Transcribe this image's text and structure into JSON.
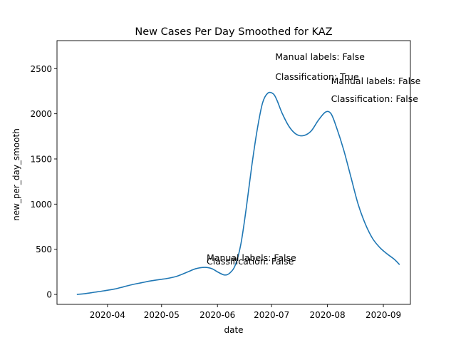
{
  "chart_data": {
    "type": "line",
    "title": "New Cases Per Day Smoothed for KAZ",
    "xlabel": "date",
    "ylabel": "new_per_day_smooth",
    "x_range": [
      "2020-03-04",
      "2020-09-16"
    ],
    "ylim": [
      -110,
      2810
    ],
    "x_ticks": [
      "2020-04",
      "2020-05",
      "2020-06",
      "2020-07",
      "2020-08",
      "2020-09"
    ],
    "y_ticks": [
      0,
      500,
      1000,
      1500,
      2000,
      2500
    ],
    "grid": false,
    "series_color": "#1f77b4",
    "series": [
      {
        "x": [
          "2020-03-15",
          "2020-03-20",
          "2020-03-25",
          "2020-03-30",
          "2020-04-05",
          "2020-04-10",
          "2020-04-15",
          "2020-04-20",
          "2020-04-25",
          "2020-04-30",
          "2020-05-05",
          "2020-05-10",
          "2020-05-15",
          "2020-05-20",
          "2020-05-25",
          "2020-05-29",
          "2020-06-01",
          "2020-06-05",
          "2020-06-08",
          "2020-06-11",
          "2020-06-14",
          "2020-06-17",
          "2020-06-20",
          "2020-06-23",
          "2020-06-26",
          "2020-06-29",
          "2020-07-02",
          "2020-07-04",
          "2020-07-07",
          "2020-07-11",
          "2020-07-15",
          "2020-07-19",
          "2020-07-23",
          "2020-07-27",
          "2020-07-31",
          "2020-08-03",
          "2020-08-06",
          "2020-08-10",
          "2020-08-14",
          "2020-08-18",
          "2020-08-22",
          "2020-08-26",
          "2020-08-30",
          "2020-09-03",
          "2020-09-07",
          "2020-09-10"
        ],
        "y": [
          0,
          10,
          25,
          40,
          60,
          85,
          110,
          130,
          150,
          165,
          180,
          205,
          245,
          285,
          300,
          285,
          250,
          215,
          240,
          330,
          560,
          960,
          1420,
          1820,
          2120,
          2230,
          2220,
          2150,
          2000,
          1850,
          1770,
          1760,
          1810,
          1930,
          2020,
          2000,
          1850,
          1600,
          1300,
          1000,
          780,
          620,
          520,
          450,
          390,
          330
        ]
      }
    ],
    "annotations": [
      {
        "text": "Manual labels: False",
        "x": "2020-07-03",
        "y": 2595
      },
      {
        "text": "Classification: True",
        "x": "2020-07-03",
        "y": 2375
      },
      {
        "text": "Manual labels: False",
        "x": "2020-08-03",
        "y": 2330
      },
      {
        "text": "Classification: False",
        "x": "2020-08-03",
        "y": 2130
      },
      {
        "text": "Manual labels: False",
        "x": "2020-05-26",
        "y": 370
      },
      {
        "text": "Classification: False",
        "x": "2020-05-26",
        "y": 330
      }
    ]
  }
}
